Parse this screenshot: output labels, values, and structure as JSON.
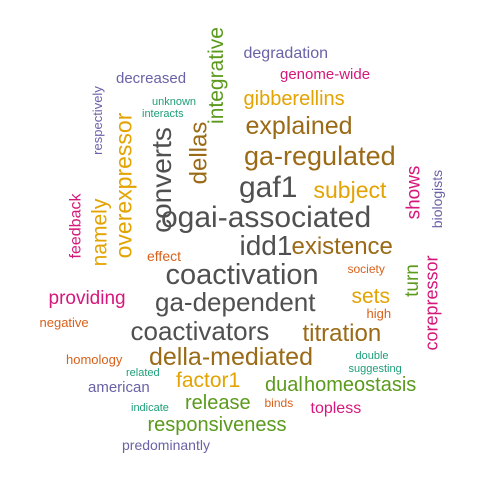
{
  "palette": {
    "gray": "#505050",
    "brown": "#9A6A16",
    "gold": "#E3A302",
    "green": "#5B9A1C",
    "magenta": "#D6177B",
    "purple": "#6A62A6",
    "teal": "#1E9E79",
    "orange": "#D9601A"
  },
  "words": [
    {
      "text": "gaf1",
      "color": "gray",
      "rotated": false
    },
    {
      "text": "ogai-associated",
      "color": "gray",
      "rotated": false
    },
    {
      "text": "idd1",
      "color": "gray",
      "rotated": false
    },
    {
      "text": "coactivation",
      "color": "gray",
      "rotated": false
    },
    {
      "text": "ga-dependent",
      "color": "gray",
      "rotated": false
    },
    {
      "text": "coactivators",
      "color": "gray",
      "rotated": false
    },
    {
      "text": "converts",
      "color": "gray",
      "rotated": true
    },
    {
      "text": "ga-regulated",
      "color": "brown",
      "rotated": false
    },
    {
      "text": "explained",
      "color": "brown",
      "rotated": false
    },
    {
      "text": "existence",
      "color": "brown",
      "rotated": false
    },
    {
      "text": "titration",
      "color": "brown",
      "rotated": false
    },
    {
      "text": "della-mediated",
      "color": "brown",
      "rotated": false
    },
    {
      "text": "dellas",
      "color": "brown",
      "rotated": true
    },
    {
      "text": "overexpressor",
      "color": "gold",
      "rotated": true
    },
    {
      "text": "namely",
      "color": "gold",
      "rotated": true
    },
    {
      "text": "subject",
      "color": "gold",
      "rotated": false
    },
    {
      "text": "gibberellins",
      "color": "gold",
      "rotated": false
    },
    {
      "text": "sets",
      "color": "gold",
      "rotated": false
    },
    {
      "text": "factor1",
      "color": "gold",
      "rotated": false
    },
    {
      "text": "integrative",
      "color": "green",
      "rotated": true
    },
    {
      "text": "turn",
      "color": "green",
      "rotated": true
    },
    {
      "text": "dual",
      "color": "green",
      "rotated": false
    },
    {
      "text": "homeostasis",
      "color": "green",
      "rotated": false
    },
    {
      "text": "release",
      "color": "green",
      "rotated": false
    },
    {
      "text": "responsiveness",
      "color": "green",
      "rotated": false
    },
    {
      "text": "shows",
      "color": "magenta",
      "rotated": true
    },
    {
      "text": "corepressor",
      "color": "magenta",
      "rotated": true
    },
    {
      "text": "feedback",
      "color": "magenta",
      "rotated": true
    },
    {
      "text": "providing",
      "color": "magenta",
      "rotated": false
    },
    {
      "text": "genome-wide",
      "color": "magenta",
      "rotated": false
    },
    {
      "text": "topless",
      "color": "magenta",
      "rotated": false
    },
    {
      "text": "degradation",
      "color": "purple",
      "rotated": false
    },
    {
      "text": "decreased",
      "color": "purple",
      "rotated": false
    },
    {
      "text": "respectively",
      "color": "purple",
      "rotated": true
    },
    {
      "text": "biologists",
      "color": "purple",
      "rotated": true
    },
    {
      "text": "american",
      "color": "purple",
      "rotated": false
    },
    {
      "text": "predominantly",
      "color": "purple",
      "rotated": false
    },
    {
      "text": "unknown",
      "color": "teal",
      "rotated": false
    },
    {
      "text": "interacts",
      "color": "teal",
      "rotated": false
    },
    {
      "text": "double",
      "color": "teal",
      "rotated": false
    },
    {
      "text": "suggesting",
      "color": "teal",
      "rotated": false
    },
    {
      "text": "related",
      "color": "teal",
      "rotated": false
    },
    {
      "text": "indicate",
      "color": "teal",
      "rotated": false
    },
    {
      "text": "effect",
      "color": "orange",
      "rotated": false
    },
    {
      "text": "society",
      "color": "orange",
      "rotated": false
    },
    {
      "text": "high",
      "color": "orange",
      "rotated": false
    },
    {
      "text": "negative",
      "color": "orange",
      "rotated": false
    },
    {
      "text": "homology",
      "color": "orange",
      "rotated": false
    },
    {
      "text": "binds",
      "color": "orange",
      "rotated": false
    }
  ]
}
